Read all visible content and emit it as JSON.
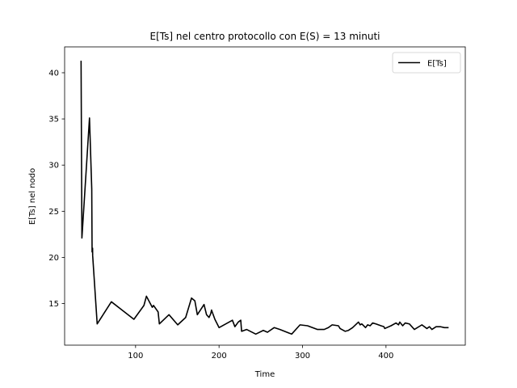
{
  "chart_data": {
    "type": "line",
    "title": "E[Ts] nel centro protocollo con E(S) = 13 minuti",
    "xlabel": "Time",
    "ylabel": "E[Ts] nel nodo",
    "xlim": [
      15,
      495
    ],
    "ylim": [
      10.5,
      42.8
    ],
    "xticks": [
      100,
      200,
      300,
      400
    ],
    "yticks": [
      15,
      20,
      25,
      30,
      35,
      40
    ],
    "grid": false,
    "legend_position": "top-right",
    "series": [
      {
        "name": "E[Ts]",
        "color": "#000000",
        "x": [
          34.7,
          35.7,
          44.8,
          47.5,
          47.9,
          48.5,
          48.6,
          51.3,
          54.0,
          71.0,
          98.0,
          110.0,
          113.0,
          120.0,
          121.5,
          127.0,
          128.5,
          140.0,
          150.5,
          160.0,
          167.0,
          171.0,
          174.0,
          182.0,
          185.0,
          188.0,
          190.0,
          191.0,
          195.0,
          200.0,
          216.0,
          219.0,
          223.0,
          226.0,
          227.0,
          233.0,
          244.0,
          253.0,
          258.0,
          266.0,
          273.0,
          284.0,
          287.0,
          297.0,
          306.0,
          318.0,
          326.0,
          331.0,
          335.5,
          343.0,
          345.0,
          351.0,
          355.0,
          360.0,
          367.0,
          369.0,
          371.0,
          375.5,
          378.0,
          381.0,
          384.0,
          388.0,
          394.0,
          397.5,
          398.5,
          406.0,
          412.0,
          415.0,
          416.5,
          420.0,
          423.0,
          428.0,
          434.0,
          443.0,
          449.0,
          452.0,
          455.0,
          460.0,
          465.0,
          470.0,
          475.0
        ],
        "y": [
          41.3,
          22.1,
          35.1,
          27.4,
          20.6,
          21.0,
          20.2,
          16.5,
          12.8,
          15.2,
          13.3,
          14.8,
          15.8,
          14.6,
          14.8,
          14.1,
          12.8,
          13.8,
          12.7,
          13.5,
          15.6,
          15.3,
          13.8,
          14.9,
          13.8,
          13.5,
          13.9,
          14.3,
          13.3,
          12.4,
          13.2,
          12.5,
          13.0,
          13.2,
          12.0,
          12.2,
          11.7,
          12.1,
          11.9,
          12.4,
          12.2,
          11.8,
          11.7,
          12.7,
          12.6,
          12.2,
          12.2,
          12.4,
          12.7,
          12.6,
          12.3,
          12.0,
          12.1,
          12.4,
          13.0,
          12.7,
          12.8,
          12.4,
          12.7,
          12.6,
          12.9,
          12.8,
          12.6,
          12.5,
          12.3,
          12.6,
          12.9,
          12.7,
          13.0,
          12.6,
          12.9,
          12.8,
          12.2,
          12.7,
          12.3,
          12.5,
          12.2,
          12.5,
          12.5,
          12.4,
          12.4
        ]
      }
    ]
  }
}
